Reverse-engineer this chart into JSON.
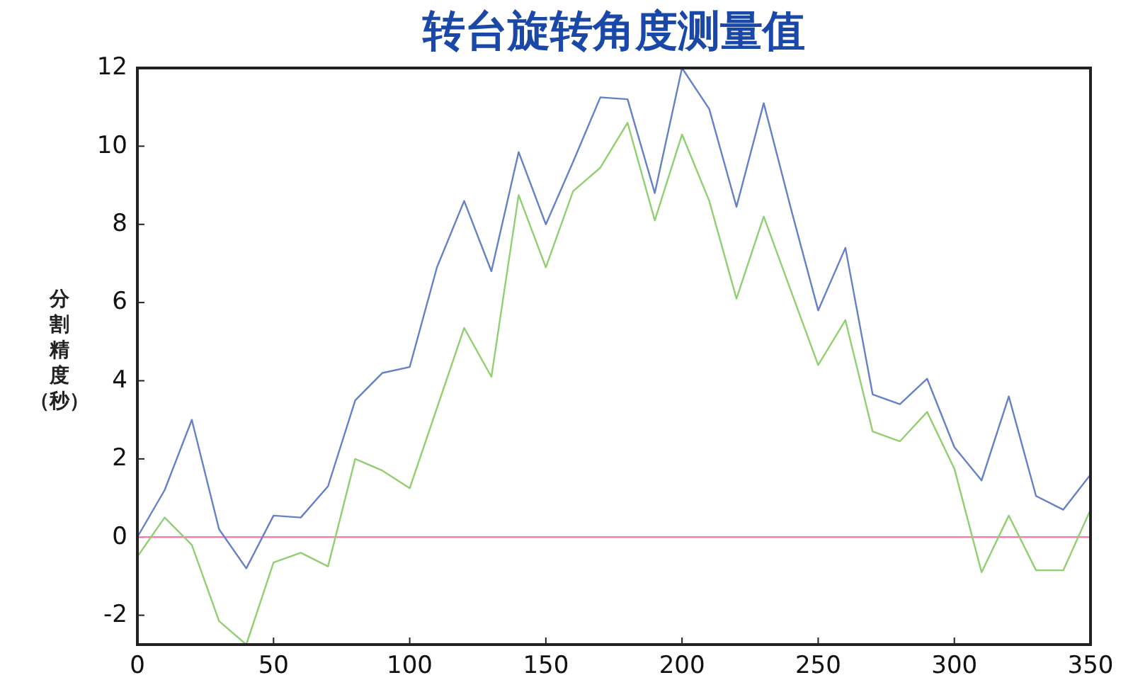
{
  "chart_data": {
    "type": "line",
    "title": "转台旋转角度测量值",
    "ylabel": "分割精度（秒）",
    "x": [
      0,
      10,
      20,
      30,
      40,
      50,
      60,
      70,
      80,
      90,
      100,
      110,
      120,
      130,
      140,
      150,
      160,
      170,
      180,
      190,
      200,
      210,
      220,
      230,
      240,
      250,
      260,
      270,
      280,
      290,
      300,
      310,
      320,
      330,
      340,
      350
    ],
    "series": [
      {
        "color": "#6680c8",
        "values": [
          0,
          1.2,
          3.0,
          0.2,
          -0.8,
          0.55,
          0.5,
          1.3,
          3.5,
          4.2,
          4.35,
          6.9,
          8.6,
          6.8,
          9.85,
          8.0,
          9.6,
          11.25,
          11.2,
          8.8,
          12.0,
          10.95,
          8.45,
          11.1,
          8.4,
          5.8,
          7.4,
          3.65,
          3.4,
          4.05,
          2.3,
          1.45,
          3.6,
          1.05,
          0.7,
          1.6
        ]
      },
      {
        "color": "#90d070",
        "values": [
          -0.5,
          0.5,
          -0.2,
          -2.15,
          -2.75,
          -0.65,
          -0.4,
          -0.75,
          2.0,
          1.7,
          1.25,
          3.3,
          5.35,
          4.1,
          8.75,
          6.9,
          8.85,
          9.45,
          10.6,
          8.1,
          10.3,
          8.6,
          6.1,
          8.2,
          6.3,
          4.4,
          5.55,
          2.7,
          2.45,
          3.2,
          1.75,
          -0.9,
          0.55,
          -0.85,
          -0.85,
          0.7
        ]
      }
    ],
    "xlim": [
      0,
      350
    ],
    "ylim": [
      -2.75,
      12
    ],
    "xticks": [
      0,
      50,
      100,
      150,
      200,
      250,
      300,
      350
    ],
    "yticks": [
      -2,
      0,
      2,
      4,
      6,
      8,
      10,
      12
    ],
    "ref_lines": [
      {
        "axis": "y",
        "value": 0,
        "color": "#f080b0"
      }
    ],
    "grid": false
  }
}
